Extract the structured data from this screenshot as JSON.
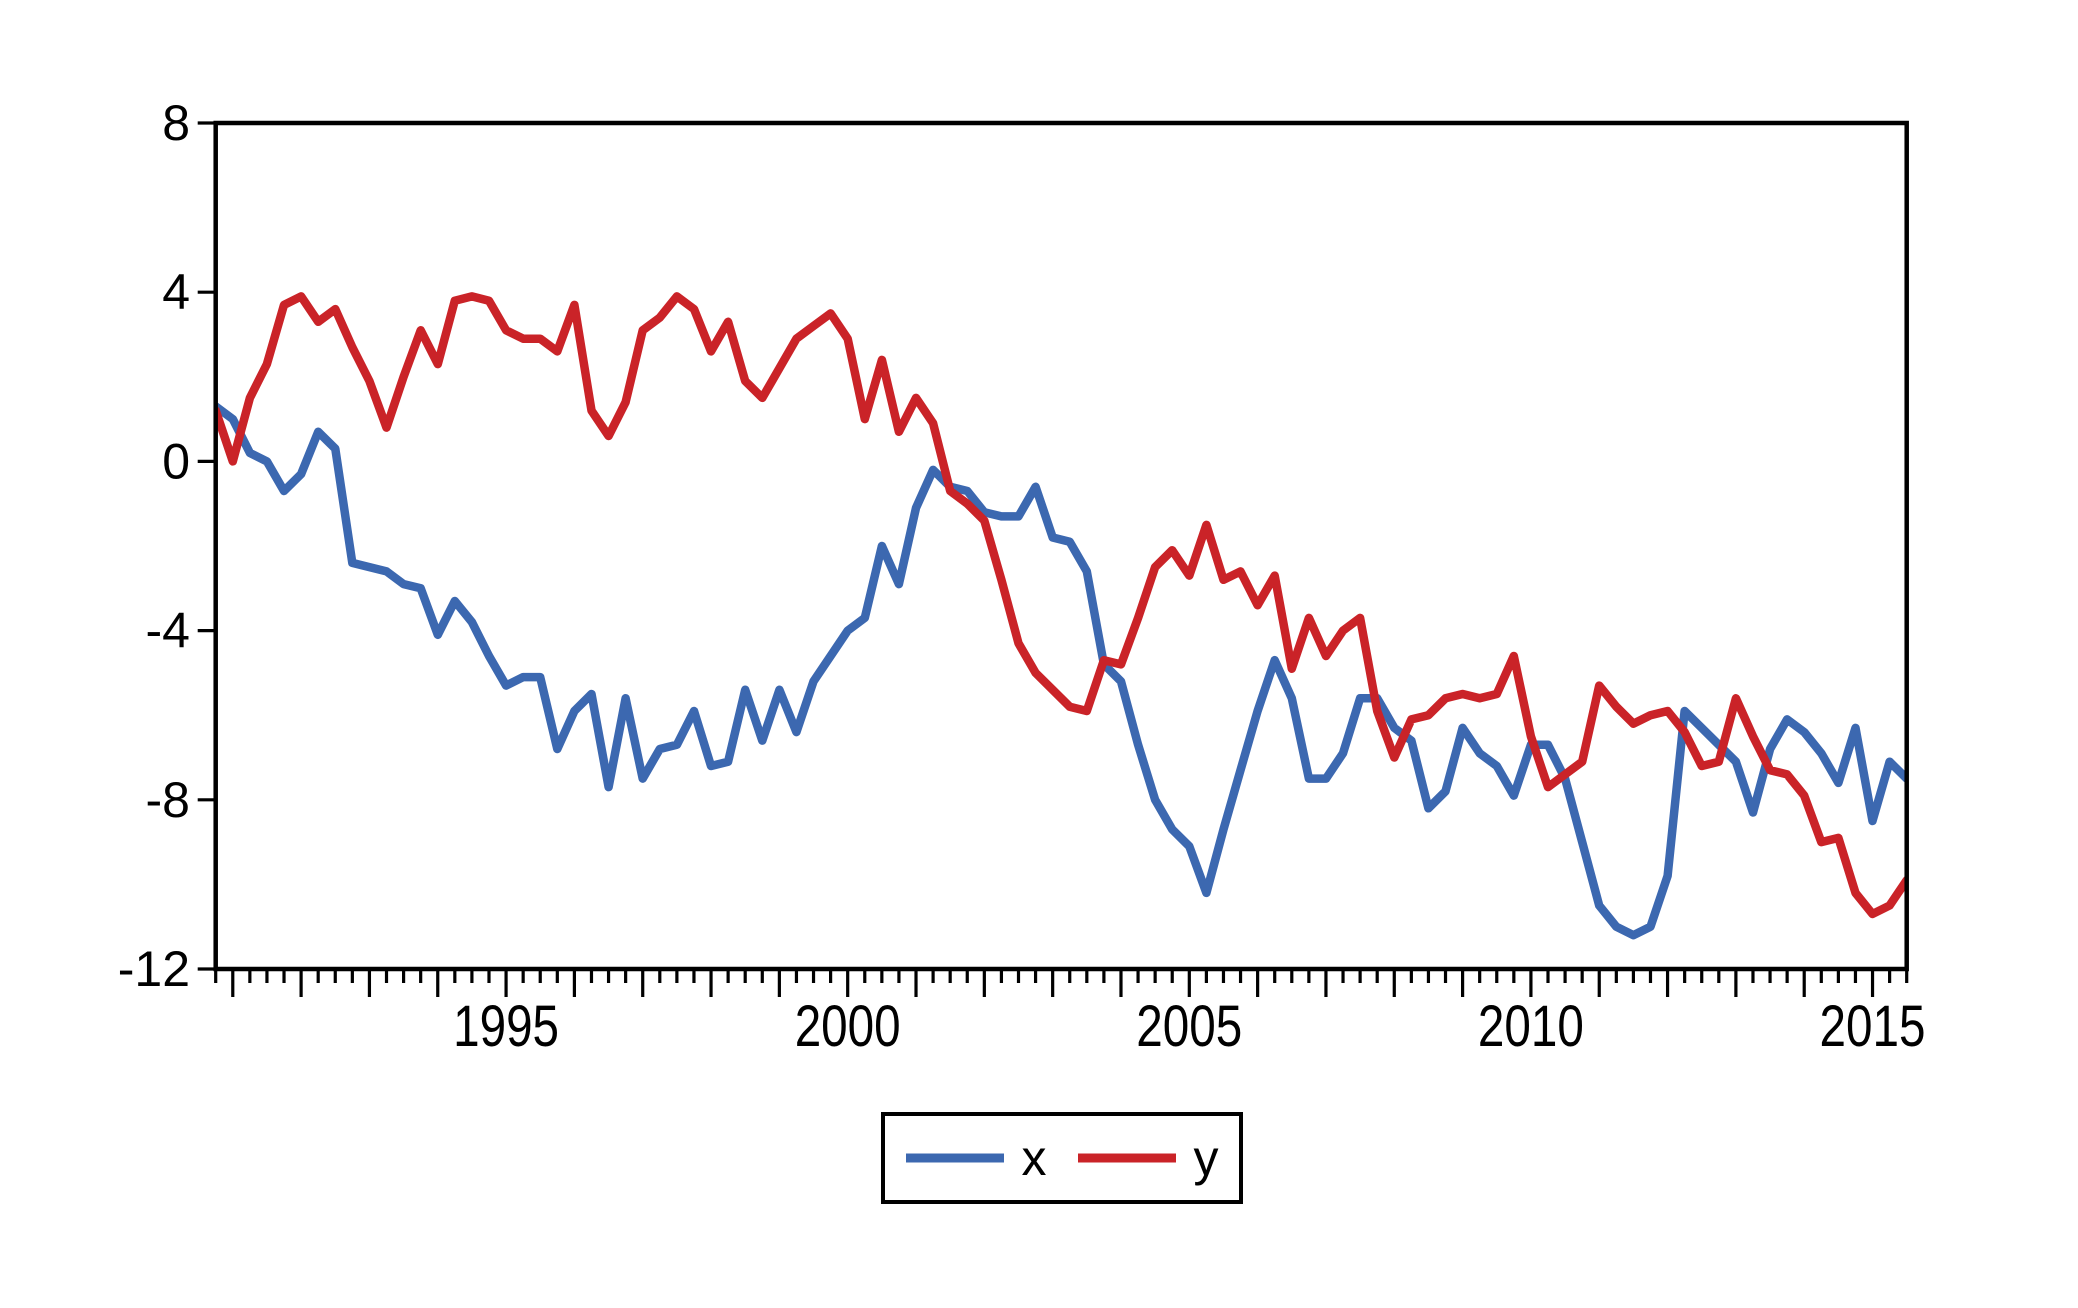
{
  "chart_data": {
    "type": "line",
    "title": "",
    "grid": false,
    "legend_position": "bottom-center",
    "x_axis": {
      "frequency": "quarterly",
      "start": "1990Q4",
      "end": "2015Q3",
      "tick_labels": [
        "1995",
        "2000",
        "2005",
        "2010",
        "2015"
      ],
      "tick_label_indices": [
        17,
        37,
        57,
        77,
        97
      ],
      "major_tick_every": 4,
      "major_tick_offset": 1
    },
    "y_axis": {
      "ticks": [
        8,
        4,
        0,
        -4,
        -8,
        -12
      ],
      "min": -12,
      "max": 8
    },
    "series": [
      {
        "name": "x",
        "color": "#3C68B0",
        "values": [
          1.3,
          1.0,
          0.2,
          0.0,
          -0.7,
          -0.3,
          0.7,
          0.3,
          -2.4,
          -2.5,
          -2.6,
          -2.9,
          -3.0,
          -4.1,
          -3.3,
          -3.8,
          -4.6,
          -5.3,
          -5.1,
          -5.1,
          -6.8,
          -5.9,
          -5.5,
          -7.7,
          -5.6,
          -7.5,
          -6.8,
          -6.7,
          -5.9,
          -7.2,
          -7.1,
          -5.4,
          -6.6,
          -5.4,
          -6.4,
          -5.2,
          -4.6,
          -4.0,
          -3.7,
          -2.0,
          -2.9,
          -1.1,
          -0.2,
          -0.6,
          -0.7,
          -1.2,
          -1.3,
          -1.3,
          -0.6,
          -1.8,
          -1.9,
          -2.6,
          -4.8,
          -5.2,
          -6.7,
          -8.0,
          -8.7,
          -9.1,
          -10.2,
          -8.7,
          -7.3,
          -5.9,
          -4.7,
          -5.6,
          -7.5,
          -7.5,
          -6.9,
          -5.6,
          -5.6,
          -6.3,
          -6.6,
          -8.2,
          -7.8,
          -6.3,
          -6.9,
          -7.2,
          -7.9,
          -6.7,
          -6.7,
          -7.5,
          -9.0,
          -10.5,
          -11.0,
          -11.2,
          -11.0,
          -9.8,
          -5.9,
          -6.3,
          -6.7,
          -7.1,
          -8.3,
          -6.8,
          -6.1,
          -6.4,
          -6.9,
          -7.6,
          -6.3,
          -8.5,
          -7.1,
          -7.5
        ]
      },
      {
        "name": "y",
        "color": "#CA2328",
        "values": [
          1.2,
          0.0,
          1.5,
          2.3,
          3.7,
          3.9,
          3.3,
          3.6,
          2.7,
          1.9,
          0.8,
          2.0,
          3.1,
          2.3,
          3.8,
          3.9,
          3.8,
          3.1,
          2.9,
          2.9,
          2.6,
          3.7,
          1.2,
          0.6,
          1.4,
          3.1,
          3.4,
          3.9,
          3.6,
          2.6,
          3.3,
          1.9,
          1.5,
          2.2,
          2.9,
          3.2,
          3.5,
          2.9,
          1.0,
          2.4,
          0.7,
          1.5,
          0.9,
          -0.7,
          -1.0,
          -1.4,
          -2.8,
          -4.3,
          -5.0,
          -5.4,
          -5.8,
          -5.9,
          -4.7,
          -4.8,
          -3.7,
          -2.5,
          -2.1,
          -2.7,
          -1.5,
          -2.8,
          -2.6,
          -3.4,
          -2.7,
          -4.9,
          -3.7,
          -4.6,
          -4.0,
          -3.7,
          -5.9,
          -7.0,
          -6.1,
          -6.0,
          -5.6,
          -5.5,
          -5.6,
          -5.5,
          -4.6,
          -6.5,
          -7.7,
          -7.4,
          -7.1,
          -5.3,
          -5.8,
          -6.2,
          -6.0,
          -5.9,
          -6.4,
          -7.2,
          -7.1,
          -5.6,
          -6.5,
          -7.3,
          -7.4,
          -7.9,
          -9.0,
          -8.9,
          -10.2,
          -10.7,
          -10.5,
          -9.9
        ]
      }
    ]
  },
  "colors": {
    "background": "#ffffff",
    "axis": "#000000",
    "text": "#000000",
    "legend_border": "#000000"
  }
}
